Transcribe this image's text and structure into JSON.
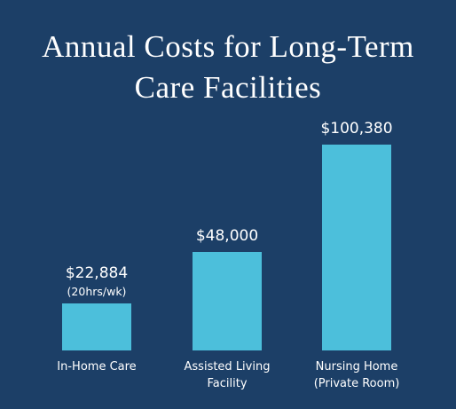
{
  "chart_data": {
    "type": "bar",
    "title": "Annual Costs for Long-Term Care Facilities",
    "categories": [
      "In-Home Care",
      "Assisted Living Facility",
      "Nursing Home (Private Room)"
    ],
    "values": [
      22884,
      48000,
      100380
    ],
    "value_labels": [
      "$22,884",
      "$48,000",
      "$100,380"
    ],
    "value_notes": [
      "(20hrs/wk)",
      null,
      null
    ],
    "color": "#4cbfdb"
  }
}
